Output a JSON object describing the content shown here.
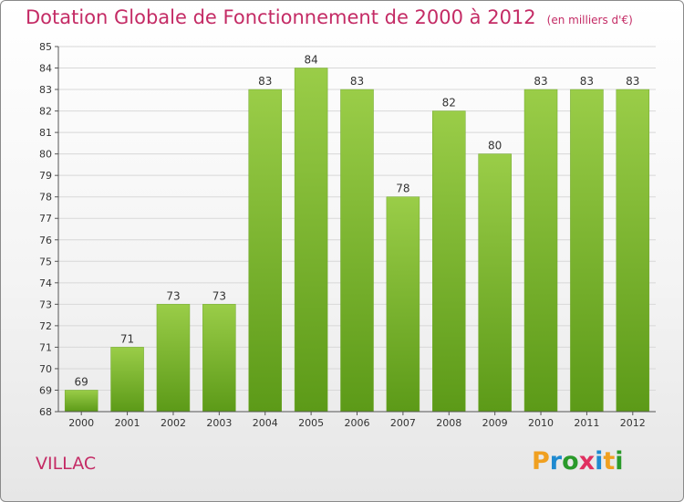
{
  "title": "Dotation Globale de Fonctionnement de 2000 à 2012",
  "subtitle": "(en milliers d'€)",
  "commune": "VILLAC",
  "logo": {
    "letters": [
      "P",
      "r",
      "o",
      "x",
      "i",
      "t",
      "i"
    ],
    "colors": [
      "#f0a020",
      "#1e8ad0",
      "#2a9a2a",
      "#e03060",
      "#1e8ad0",
      "#f0a020",
      "#2a9a2a"
    ]
  },
  "colors": {
    "title": "#c42b65",
    "bar_top": "#9acd48",
    "bar_bottom": "#5c9a18",
    "grid": "#d8d8d8"
  },
  "chart_data": {
    "type": "bar",
    "title": "Dotation Globale de Fonctionnement de 2000 à 2012",
    "subtitle": "(en milliers d'€)",
    "categories": [
      "2000",
      "2001",
      "2002",
      "2003",
      "2004",
      "2005",
      "2006",
      "2007",
      "2008",
      "2009",
      "2010",
      "2011",
      "2012"
    ],
    "values": [
      69,
      71,
      73,
      73,
      83,
      84,
      83,
      78,
      82,
      80,
      83,
      83,
      83
    ],
    "ylim": [
      68,
      85
    ],
    "yticks": [
      68,
      69,
      70,
      71,
      72,
      73,
      74,
      75,
      76,
      77,
      78,
      79,
      80,
      81,
      82,
      83,
      84,
      85
    ],
    "xlabel": "",
    "ylabel": "",
    "grid": true
  }
}
